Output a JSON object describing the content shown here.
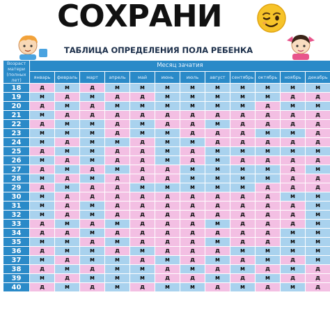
{
  "headline": "СОХРАНИ",
  "subtitle": "ТАБЛИЦА ОПРЕДЕЛЕНИЯ ПОЛА РЕБЕНКА",
  "icons": {
    "emoji": "winking-face-icon",
    "left_character": "boy-cartoon-icon",
    "right_character": "girl-cartoon-icon"
  },
  "colors": {
    "header_blue": "#2a8ac8",
    "boy_cell": "#a9d2ee",
    "girl_cell": "#f3bfe3"
  },
  "table": {
    "corner_label": "Возраст матери (полных лет)",
    "month_group_label": "Месяц зачатия",
    "months": [
      "январь",
      "февраль",
      "март",
      "апрель",
      "май",
      "июнь",
      "июль",
      "август",
      "сентябрь",
      "октябрь",
      "ноябрь",
      "декабрь"
    ],
    "rows": [
      {
        "age": "18",
        "values": [
          "д",
          "м",
          "д",
          "м",
          "м",
          "м",
          "м",
          "м",
          "м",
          "м",
          "м",
          "м"
        ]
      },
      {
        "age": "19",
        "values": [
          "м",
          "д",
          "м",
          "д",
          "д",
          "м",
          "м",
          "м",
          "м",
          "м",
          "д",
          "д"
        ]
      },
      {
        "age": "20",
        "values": [
          "д",
          "м",
          "д",
          "м",
          "м",
          "м",
          "м",
          "м",
          "м",
          "д",
          "м",
          "м"
        ]
      },
      {
        "age": "21",
        "values": [
          "м",
          "д",
          "д",
          "д",
          "д",
          "д",
          "д",
          "д",
          "д",
          "д",
          "д",
          "д"
        ]
      },
      {
        "age": "22",
        "values": [
          "д",
          "м",
          "м",
          "д",
          "м",
          "д",
          "д",
          "м",
          "д",
          "д",
          "д",
          "д"
        ]
      },
      {
        "age": "23",
        "values": [
          "м",
          "м",
          "м",
          "д",
          "м",
          "м",
          "д",
          "д",
          "д",
          "м",
          "м",
          "д"
        ]
      },
      {
        "age": "24",
        "values": [
          "м",
          "д",
          "м",
          "м",
          "д",
          "м",
          "м",
          "д",
          "д",
          "д",
          "д",
          "д"
        ]
      },
      {
        "age": "25",
        "values": [
          "д",
          "м",
          "м",
          "д",
          "д",
          "м",
          "д",
          "м",
          "м",
          "м",
          "м",
          "м"
        ]
      },
      {
        "age": "26",
        "values": [
          "м",
          "д",
          "м",
          "д",
          "д",
          "м",
          "д",
          "м",
          "д",
          "д",
          "д",
          "д"
        ]
      },
      {
        "age": "27",
        "values": [
          "д",
          "м",
          "д",
          "м",
          "д",
          "д",
          "м",
          "м",
          "м",
          "м",
          "д",
          "м"
        ]
      },
      {
        "age": "28",
        "values": [
          "м",
          "д",
          "м",
          "д",
          "д",
          "д",
          "м",
          "м",
          "м",
          "м",
          "д",
          "д"
        ]
      },
      {
        "age": "29",
        "values": [
          "д",
          "м",
          "д",
          "д",
          "м",
          "м",
          "м",
          "м",
          "м",
          "д",
          "д",
          "д"
        ]
      },
      {
        "age": "30",
        "values": [
          "м",
          "д",
          "д",
          "д",
          "д",
          "д",
          "д",
          "д",
          "д",
          "д",
          "м",
          "м"
        ]
      },
      {
        "age": "31",
        "values": [
          "м",
          "д",
          "м",
          "д",
          "д",
          "д",
          "д",
          "д",
          "д",
          "д",
          "д",
          "м"
        ]
      },
      {
        "age": "32",
        "values": [
          "м",
          "д",
          "м",
          "д",
          "д",
          "д",
          "д",
          "д",
          "д",
          "д",
          "д",
          "м"
        ]
      },
      {
        "age": "33",
        "values": [
          "д",
          "м",
          "д",
          "м",
          "д",
          "д",
          "д",
          "м",
          "д",
          "д",
          "д",
          "м"
        ]
      },
      {
        "age": "34",
        "values": [
          "д",
          "д",
          "м",
          "д",
          "д",
          "д",
          "д",
          "д",
          "д",
          "д",
          "м",
          "м"
        ]
      },
      {
        "age": "35",
        "values": [
          "м",
          "м",
          "д",
          "м",
          "д",
          "д",
          "д",
          "м",
          "д",
          "д",
          "м",
          "м"
        ]
      },
      {
        "age": "36",
        "values": [
          "д",
          "м",
          "м",
          "д",
          "м",
          "д",
          "д",
          "д",
          "м",
          "м",
          "м",
          "м"
        ]
      },
      {
        "age": "37",
        "values": [
          "м",
          "д",
          "м",
          "м",
          "д",
          "м",
          "д",
          "м",
          "д",
          "м",
          "д",
          "м"
        ]
      },
      {
        "age": "38",
        "values": [
          "д",
          "м",
          "д",
          "м",
          "м",
          "д",
          "м",
          "д",
          "м",
          "д",
          "м",
          "д"
        ]
      },
      {
        "age": "39",
        "values": [
          "м",
          "д",
          "м",
          "м",
          "м",
          "д",
          "д",
          "м",
          "д",
          "м",
          "д",
          "д"
        ]
      },
      {
        "age": "40",
        "values": [
          "д",
          "м",
          "д",
          "м",
          "д",
          "м",
          "м",
          "д",
          "м",
          "д",
          "м",
          "д"
        ]
      }
    ]
  }
}
